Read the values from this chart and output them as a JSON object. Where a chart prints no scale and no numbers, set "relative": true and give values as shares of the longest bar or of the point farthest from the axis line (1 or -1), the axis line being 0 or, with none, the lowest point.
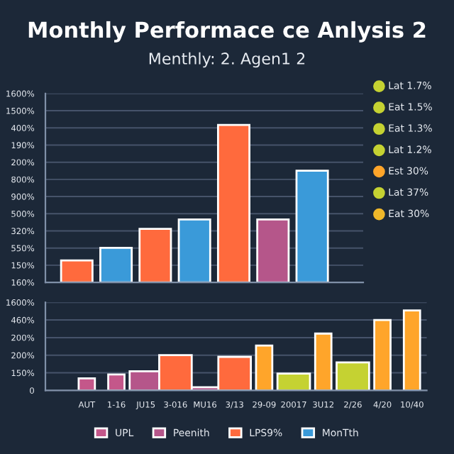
{
  "chart_data": [
    {
      "type": "bar",
      "title": "Monthly Performace ce Anlysis 2",
      "subtitle": "Menthly: 2. Agen1 2",
      "relative": true,
      "categories": [
        null,
        null,
        null,
        null,
        null,
        null,
        null
      ],
      "values": [
        0.14,
        0.22,
        0.34,
        0.4,
        1,
        0.4,
        0.71
      ],
      "colors": [
        "#ff6a3d",
        "#3a9ad9",
        "#ff6a3d",
        "#3a9ad9",
        "#ff6a3d",
        "#b5568a",
        "#3a9ad9"
      ],
      "grid": "y",
      "annotations": [
        "160%",
        "150%",
        "550%",
        "320%",
        "500%",
        "900%",
        "800%",
        "200%",
        "190%",
        "400%",
        "1500%",
        "1600%"
      ]
    },
    {
      "type": "other",
      "annotations": [
        "Lat 1.7%",
        "Eat 1.5%",
        "Eat 1.3%",
        "Lat 1.2%",
        "Est 30%",
        "Lat 37%",
        "Eat 30%"
      ]
    },
    {
      "type": "bar",
      "relative": true,
      "categories": [
        "AUT",
        "1-16",
        "JU15",
        "3-016",
        "MU16",
        "3/13",
        "29-09",
        "20017",
        "3U12",
        "2/26",
        "4/20",
        "10/40"
      ],
      "series": [
        {
          "name": "UPL",
          "color": "#c4578a",
          "values": [
            0.15,
            0.2,
            null,
            null,
            null,
            null,
            null,
            null,
            null,
            null,
            null,
            null
          ]
        },
        {
          "name": "Peenith",
          "color": "#b5568a",
          "values": [
            null,
            null,
            0.24,
            null,
            0.04,
            null,
            null,
            null,
            null,
            null,
            null,
            null
          ]
        },
        {
          "name": "LPS9%",
          "color": "#ff6a3d",
          "values": [
            null,
            null,
            null,
            0.44,
            null,
            0.42,
            null,
            null,
            null,
            null,
            null,
            null
          ]
        },
        {
          "name": "MonTth",
          "color": "#3a9ad9",
          "values": [
            null,
            null,
            null,
            null,
            null,
            null,
            null,
            null,
            null,
            null,
            null,
            null
          ]
        },
        {
          "color": "#ffa52a",
          "values": [
            null,
            null,
            null,
            null,
            null,
            null,
            0.56,
            null,
            0.71,
            null,
            0.88,
            1
          ]
        },
        {
          "color": "#c5d232",
          "values": [
            null,
            null,
            null,
            null,
            null,
            null,
            null,
            0.21,
            null,
            0.35,
            null,
            null
          ]
        }
      ],
      "grid": "y",
      "legend": "bottom",
      "annotations": [
        "0",
        "150%",
        "200%",
        "200%",
        "460%",
        "1600%"
      ]
    }
  ]
}
